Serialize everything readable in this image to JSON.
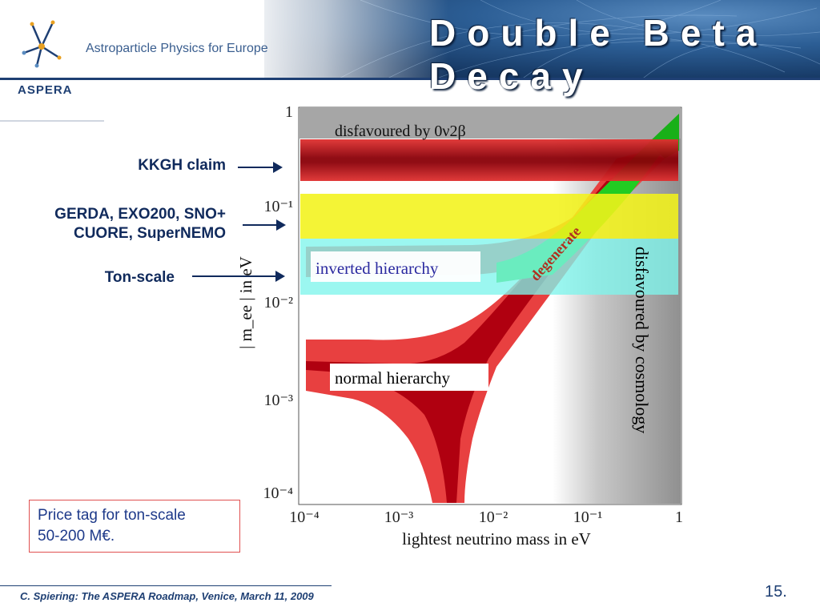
{
  "header": {
    "title": "Double Beta Decay",
    "subtitle": "Astroparticle Physics for Europe",
    "logo_text": "ASPERA"
  },
  "plot": {
    "y_tick_labels": [
      "1",
      "10⁻¹",
      "10⁻²",
      "10⁻³",
      "10⁻⁴"
    ],
    "x_tick_labels": [
      "10⁻⁴",
      "10⁻³",
      "10⁻²",
      "10⁻¹",
      "1"
    ],
    "xlabel": "lightest neutrino mass in eV",
    "ylabel": "| m_ee | in eV",
    "region_disfavoured_0v2b": "disfavoured by 0ν2β",
    "region_disfavoured_cosmology": "disfavoured by cosmology",
    "region_inverted": "inverted hierarchy",
    "region_normal": "normal hierarchy",
    "region_degenerate": "degenerate"
  },
  "annotations": {
    "kkgh": "KKGH claim",
    "gerda_line1": "GERDA, EXO200, SNO+",
    "gerda_line2": "CUORE, SuperNEMO",
    "ton_scale": "Ton-scale",
    "price_line1": "Price tag for ton-scale",
    "price_line2": "50-200 M€."
  },
  "footer": {
    "citation": "C. Spiering: The ASPERA Roadmap, Venice,  March 11, 2009",
    "page": "15."
  },
  "colors": {
    "brand_blue": "#1e3f73",
    "kkgh_band": "#c0101a",
    "gerda_band": "#f2f21a",
    "ton_band": "#7ff5ec",
    "hierarchy_red": "#e03030",
    "degenerate_green": "#22cc22"
  }
}
